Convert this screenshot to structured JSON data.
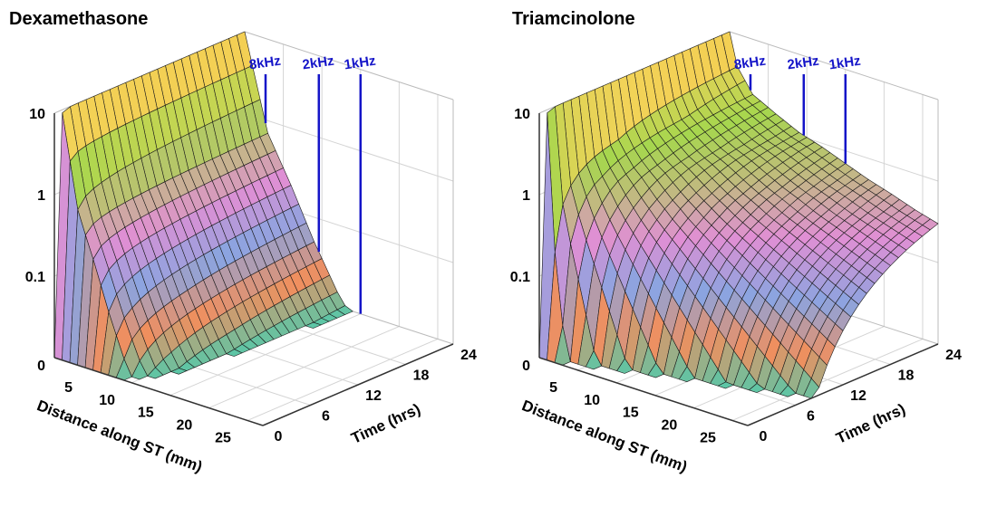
{
  "chart_data": [
    {
      "type": "surface3d",
      "title": "Dexamethasone",
      "xlabel": "Distance along ST (mm)",
      "ylabel": "Time (hrs)",
      "zscale": "log",
      "xlim": [
        0,
        27
      ],
      "ylim": [
        0,
        24
      ],
      "zlim": [
        0.01,
        10
      ],
      "xticks": [
        "5",
        "10",
        "15",
        "20",
        "25"
      ],
      "yticks": [
        "0",
        "6",
        "12",
        "18",
        "24"
      ],
      "zticks": [
        {
          "label": "0",
          "value": 0.01
        },
        {
          "label": "0.1",
          "value": 0.1
        },
        {
          "label": "1",
          "value": 1
        },
        {
          "label": "10",
          "value": 10
        }
      ],
      "profile_at_24h": {
        "distance": [
          0,
          3,
          6,
          9,
          12,
          14
        ],
        "value": [
          10,
          0.7,
          0.2,
          0.05,
          0.015,
          0.008
        ]
      },
      "markers": [
        {
          "label": "8kHz",
          "distance": 2.7
        },
        {
          "label": "2kHz",
          "distance": 9.6
        },
        {
          "label": "1kHz",
          "distance": 15
        }
      ],
      "marker_color": "#1414c8",
      "grid": true
    },
    {
      "type": "surface3d",
      "title": "Triamcinolone",
      "xlabel": "Distance along ST (mm)",
      "ylabel": "Time (hrs)",
      "zscale": "log",
      "xlim": [
        0,
        27
      ],
      "ylim": [
        0,
        24
      ],
      "zlim": [
        0.01,
        10
      ],
      "xticks": [
        "5",
        "10",
        "15",
        "20",
        "25"
      ],
      "yticks": [
        "0",
        "6",
        "12",
        "18",
        "24"
      ],
      "zticks": [
        {
          "label": "0",
          "value": 0.01
        },
        {
          "label": "0.1",
          "value": 0.1
        },
        {
          "label": "1",
          "value": 1
        },
        {
          "label": "10",
          "value": 10
        }
      ],
      "profile_at_24h": {
        "distance": [
          0,
          1,
          3,
          6,
          9,
          12,
          15,
          18,
          21,
          24,
          27
        ],
        "value": [
          10,
          4,
          2.1,
          1.5,
          1.1,
          0.9,
          0.7,
          0.55,
          0.45,
          0.36,
          0.3
        ]
      },
      "markers": [
        {
          "label": "8kHz",
          "distance": 2.7
        },
        {
          "label": "2kHz",
          "distance": 9.6
        },
        {
          "label": "1kHz",
          "distance": 15
        }
      ],
      "marker_color": "#1414c8",
      "grid": true
    }
  ]
}
